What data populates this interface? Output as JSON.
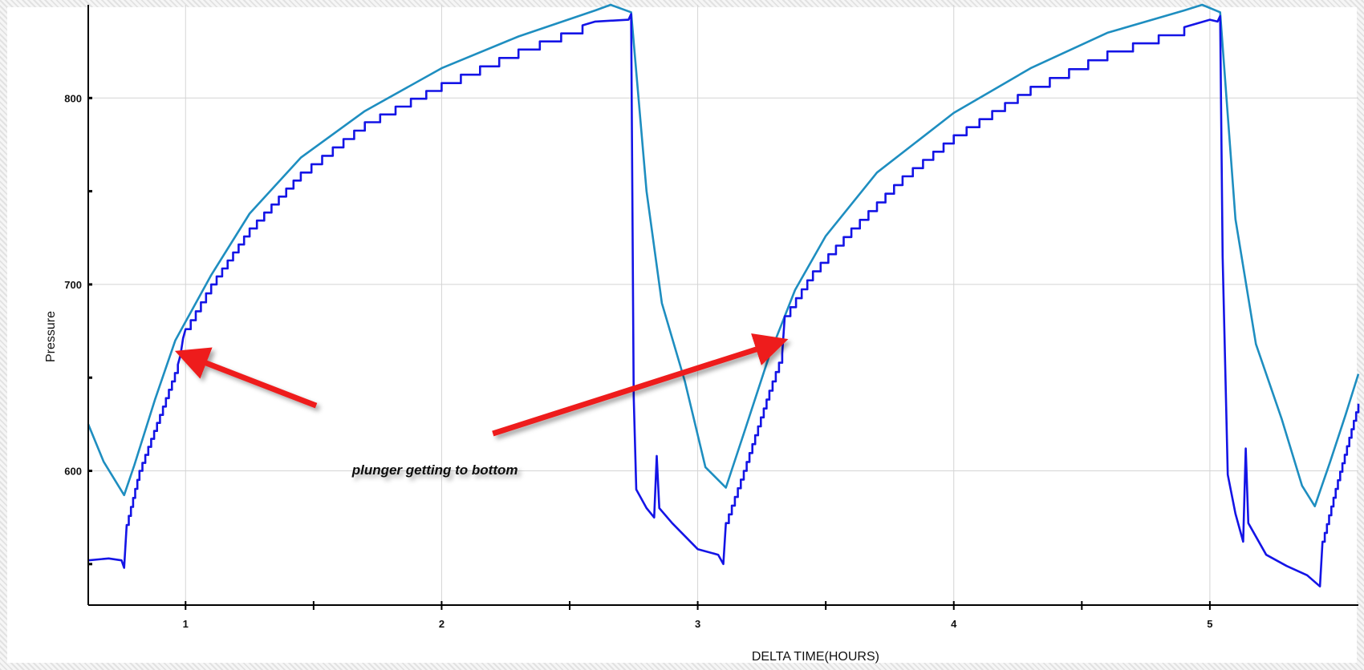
{
  "chart_data": {
    "type": "line",
    "title": "",
    "xlabel": "DELTA TIME(HOURS)",
    "ylabel": "Pressure",
    "xlim": [
      0.62,
      5.58
    ],
    "ylim": [
      528,
      850
    ],
    "x_ticks": [
      1,
      2,
      3,
      4,
      5
    ],
    "y_ticks": [
      600,
      700,
      800
    ],
    "x_minor_ticks": [
      1.5,
      2.5,
      3.5,
      4.5
    ],
    "y_minor_ticks": [
      550,
      650,
      750
    ],
    "grid": true,
    "series": [
      {
        "color": "#1e8ec0",
        "style": "smooth",
        "points": [
          [
            0.62,
            625
          ],
          [
            0.68,
            605
          ],
          [
            0.76,
            587
          ],
          [
            0.8,
            603
          ],
          [
            0.88,
            638
          ],
          [
            0.96,
            670
          ],
          [
            1.0,
            680
          ],
          [
            1.1,
            705
          ],
          [
            1.25,
            738
          ],
          [
            1.45,
            768
          ],
          [
            1.7,
            793
          ],
          [
            2.0,
            816
          ],
          [
            2.3,
            833
          ],
          [
            2.6,
            847
          ],
          [
            2.66,
            850
          ],
          [
            2.74,
            846
          ],
          [
            2.8,
            750
          ],
          [
            2.86,
            690
          ],
          [
            2.95,
            648
          ],
          [
            3.03,
            602
          ],
          [
            3.11,
            591
          ],
          [
            3.18,
            620
          ],
          [
            3.28,
            662
          ],
          [
            3.38,
            697
          ],
          [
            3.5,
            726
          ],
          [
            3.7,
            760
          ],
          [
            4.0,
            792
          ],
          [
            4.3,
            816
          ],
          [
            4.6,
            835
          ],
          [
            4.9,
            847
          ],
          [
            4.97,
            850
          ],
          [
            5.04,
            846
          ],
          [
            5.1,
            735
          ],
          [
            5.18,
            668
          ],
          [
            5.28,
            628
          ],
          [
            5.36,
            592
          ],
          [
            5.41,
            581
          ],
          [
            5.47,
            605
          ],
          [
            5.53,
            630
          ],
          [
            5.58,
            652
          ]
        ]
      },
      {
        "color": "#1414e6",
        "style": "stepped",
        "points": [
          [
            0.62,
            552
          ],
          [
            0.7,
            553
          ],
          [
            0.75,
            552
          ],
          [
            0.76,
            548
          ],
          [
            0.77,
            571
          ],
          [
            0.82,
            600
          ],
          [
            0.9,
            630
          ],
          [
            0.97,
            657
          ],
          [
            0.98,
            662
          ],
          [
            0.99,
            671
          ],
          [
            1.0,
            676
          ],
          [
            1.1,
            700
          ],
          [
            1.25,
            730
          ],
          [
            1.45,
            760
          ],
          [
            1.7,
            787
          ],
          [
            2.0,
            808
          ],
          [
            2.3,
            826
          ],
          [
            2.55,
            839
          ],
          [
            2.6,
            841
          ],
          [
            2.73,
            842
          ],
          [
            2.74,
            845
          ],
          [
            2.75,
            640
          ],
          [
            2.76,
            590
          ],
          [
            2.8,
            580
          ],
          [
            2.83,
            575
          ],
          [
            2.84,
            608
          ],
          [
            2.85,
            580
          ],
          [
            2.9,
            572
          ],
          [
            3.0,
            558
          ],
          [
            3.08,
            555
          ],
          [
            3.1,
            550
          ],
          [
            3.11,
            572
          ],
          [
            3.18,
            600
          ],
          [
            3.28,
            643
          ],
          [
            3.33,
            663
          ],
          [
            3.34,
            683
          ],
          [
            3.45,
            707
          ],
          [
            3.6,
            730
          ],
          [
            3.8,
            758
          ],
          [
            4.0,
            780
          ],
          [
            4.3,
            806
          ],
          [
            4.6,
            825
          ],
          [
            4.9,
            838
          ],
          [
            5.0,
            842
          ],
          [
            5.03,
            841
          ],
          [
            5.04,
            844
          ],
          [
            5.05,
            715
          ],
          [
            5.07,
            598
          ],
          [
            5.1,
            577
          ],
          [
            5.13,
            562
          ],
          [
            5.14,
            612
          ],
          [
            5.15,
            572
          ],
          [
            5.22,
            555
          ],
          [
            5.3,
            549
          ],
          [
            5.38,
            544
          ],
          [
            5.43,
            538
          ],
          [
            5.44,
            562
          ],
          [
            5.5,
            595
          ],
          [
            5.58,
            636
          ]
        ]
      }
    ],
    "annotations": [
      {
        "text": "plunger getting to bottom",
        "x": 1.65,
        "y": 598
      }
    ],
    "arrows": [
      {
        "from": [
          1.51,
          635
        ],
        "to": [
          1.04,
          660
        ],
        "color": "#ee1c1c"
      },
      {
        "from": [
          2.2,
          620
        ],
        "to": [
          3.27,
          667
        ],
        "color": "#ee1c1c"
      }
    ]
  }
}
